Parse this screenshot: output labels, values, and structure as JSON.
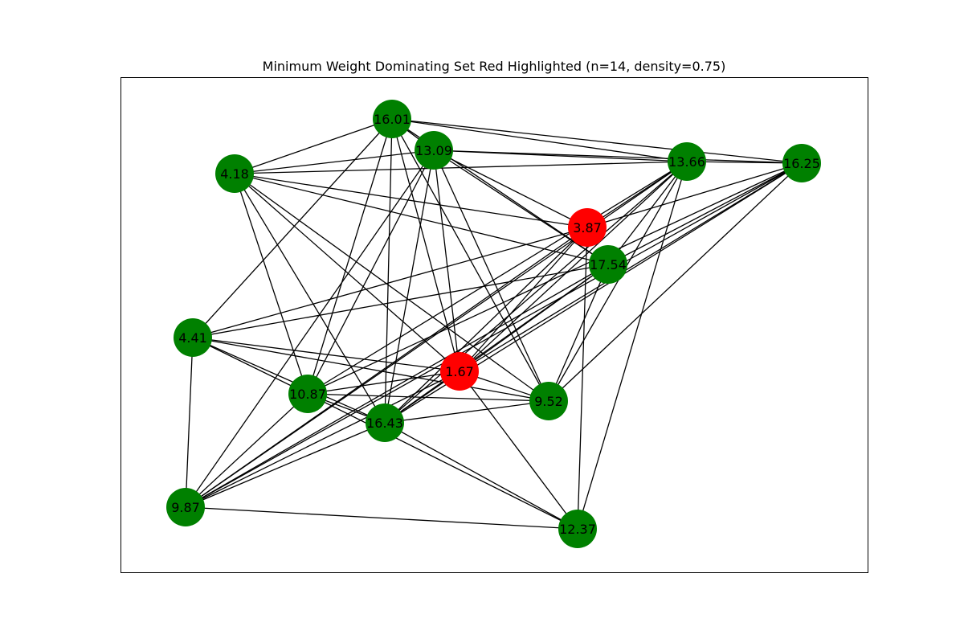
{
  "title": "Minimum Weight Dominating Set Red Highlighted (n=14, density=0.75)",
  "colors": {
    "dominating": "#ff0000",
    "regular": "#008000",
    "edge": "#000000"
  },
  "nodes": [
    {
      "id": "n0",
      "label": "16.01",
      "dominating": false
    },
    {
      "id": "n1",
      "label": "13.09",
      "dominating": false
    },
    {
      "id": "n2",
      "label": "4.18",
      "dominating": false
    },
    {
      "id": "n3",
      "label": "13.66",
      "dominating": false
    },
    {
      "id": "n4",
      "label": "16.25",
      "dominating": false
    },
    {
      "id": "n5",
      "label": "3.87",
      "dominating": true
    },
    {
      "id": "n6",
      "label": "17.54",
      "dominating": false
    },
    {
      "id": "n7",
      "label": "4.41",
      "dominating": false
    },
    {
      "id": "n8",
      "label": "1.67",
      "dominating": true
    },
    {
      "id": "n9",
      "label": "10.87",
      "dominating": false
    },
    {
      "id": "n10",
      "label": "9.52",
      "dominating": false
    },
    {
      "id": "n11",
      "label": "16.43",
      "dominating": false
    },
    {
      "id": "n12",
      "label": "9.87",
      "dominating": false
    },
    {
      "id": "n13",
      "label": "12.37",
      "dominating": false
    }
  ],
  "edges": [
    [
      "n0",
      "n1"
    ],
    [
      "n0",
      "n3"
    ],
    [
      "n0",
      "n4"
    ],
    [
      "n0",
      "n2"
    ],
    [
      "n0",
      "n6"
    ],
    [
      "n0",
      "n8"
    ],
    [
      "n0",
      "n11"
    ],
    [
      "n0",
      "n9"
    ],
    [
      "n0",
      "n7"
    ],
    [
      "n0",
      "n10"
    ],
    [
      "n1",
      "n3"
    ],
    [
      "n1",
      "n4"
    ],
    [
      "n1",
      "n5"
    ],
    [
      "n1",
      "n6"
    ],
    [
      "n1",
      "n8"
    ],
    [
      "n1",
      "n11"
    ],
    [
      "n1",
      "n9"
    ],
    [
      "n1",
      "n12"
    ],
    [
      "n1",
      "n10"
    ],
    [
      "n1",
      "n2"
    ],
    [
      "n2",
      "n3"
    ],
    [
      "n2",
      "n5"
    ],
    [
      "n2",
      "n6"
    ],
    [
      "n2",
      "n8"
    ],
    [
      "n2",
      "n9"
    ],
    [
      "n2",
      "n10"
    ],
    [
      "n2",
      "n11"
    ],
    [
      "n3",
      "n4"
    ],
    [
      "n3",
      "n5"
    ],
    [
      "n3",
      "n6"
    ],
    [
      "n3",
      "n8"
    ],
    [
      "n3",
      "n11"
    ],
    [
      "n3",
      "n12"
    ],
    [
      "n3",
      "n13"
    ],
    [
      "n3",
      "n10"
    ],
    [
      "n3",
      "n9"
    ],
    [
      "n4",
      "n5"
    ],
    [
      "n4",
      "n6"
    ],
    [
      "n4",
      "n8"
    ],
    [
      "n4",
      "n12"
    ],
    [
      "n4",
      "n10"
    ],
    [
      "n4",
      "n11"
    ],
    [
      "n4",
      "n9"
    ],
    [
      "n5",
      "n7"
    ],
    [
      "n5",
      "n8"
    ],
    [
      "n5",
      "n11"
    ],
    [
      "n5",
      "n12"
    ],
    [
      "n5",
      "n13"
    ],
    [
      "n6",
      "n7"
    ],
    [
      "n6",
      "n8"
    ],
    [
      "n6",
      "n11"
    ],
    [
      "n6",
      "n12"
    ],
    [
      "n6",
      "n10"
    ],
    [
      "n7",
      "n8"
    ],
    [
      "n7",
      "n9"
    ],
    [
      "n7",
      "n11"
    ],
    [
      "n7",
      "n12"
    ],
    [
      "n7",
      "n10"
    ],
    [
      "n8",
      "n9"
    ],
    [
      "n8",
      "n10"
    ],
    [
      "n8",
      "n11"
    ],
    [
      "n8",
      "n12"
    ],
    [
      "n8",
      "n13"
    ],
    [
      "n9",
      "n10"
    ],
    [
      "n9",
      "n11"
    ],
    [
      "n9",
      "n13"
    ],
    [
      "n9",
      "n12"
    ],
    [
      "n10",
      "n11"
    ],
    [
      "n11",
      "n13"
    ],
    [
      "n11",
      "n12"
    ],
    [
      "n12",
      "n13"
    ]
  ]
}
